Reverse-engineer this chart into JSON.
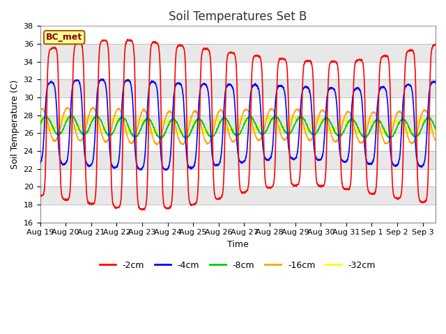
{
  "title": "Soil Temperatures Set B",
  "xlabel": "Time",
  "ylabel": "Soil Temperature (C)",
  "ylim": [
    16,
    38
  ],
  "n_days": 15.5,
  "label": "BC_met",
  "xtick_labels": [
    "Aug 19",
    "Aug 20",
    "Aug 21",
    "Aug 22",
    "Aug 23",
    "Aug 24",
    "Aug 25",
    "Aug 26",
    "Aug 27",
    "Aug 28",
    "Aug 29",
    "Aug 30",
    "Aug 31",
    "Sep 1",
    "Sep 2",
    "Sep 3"
  ],
  "legend_entries": [
    "-2cm",
    "-4cm",
    "-8cm",
    "-16cm",
    "-32cm"
  ],
  "legend_colors": [
    "#FF0000",
    "#0000FF",
    "#00CC00",
    "#FFA500",
    "#FFFF00"
  ],
  "bg_bands": [
    "#FFFFFF",
    "#E8E8E8"
  ],
  "label_bg": "#FFFF99",
  "label_edge": "#996600",
  "label_text_color": "#8B0000",
  "series_params": {
    "-2cm": {
      "mean": 27.0,
      "amp": 8.2,
      "skew": 3.0,
      "phase": -1.57,
      "amp_mod_mean": 1.0,
      "amp_mod_amp": 0.15,
      "amp_mod_period": 14
    },
    "-4cm": {
      "mean": 27.0,
      "amp": 4.5,
      "skew": 2.0,
      "phase": -1.1,
      "amp_mod_mean": 1.0,
      "amp_mod_amp": 0.1,
      "amp_mod_period": 14
    },
    "-8cm": {
      "mean": 26.7,
      "amp": 1.0,
      "skew": 0.5,
      "phase": 0.2,
      "amp_mod_mean": 1.0,
      "amp_mod_amp": 0.05,
      "amp_mod_period": 14
    },
    "-16cm": {
      "mean": 26.8,
      "amp": 1.8,
      "skew": -0.5,
      "phase": 1.1,
      "amp_mod_mean": 1.0,
      "amp_mod_amp": 0.05,
      "amp_mod_period": 14
    },
    "-32cm": {
      "mean": 26.9,
      "amp": 0.65,
      "skew": -1.0,
      "phase": 2.0,
      "amp_mod_mean": 1.0,
      "amp_mod_amp": 0.03,
      "amp_mod_period": 14
    }
  }
}
